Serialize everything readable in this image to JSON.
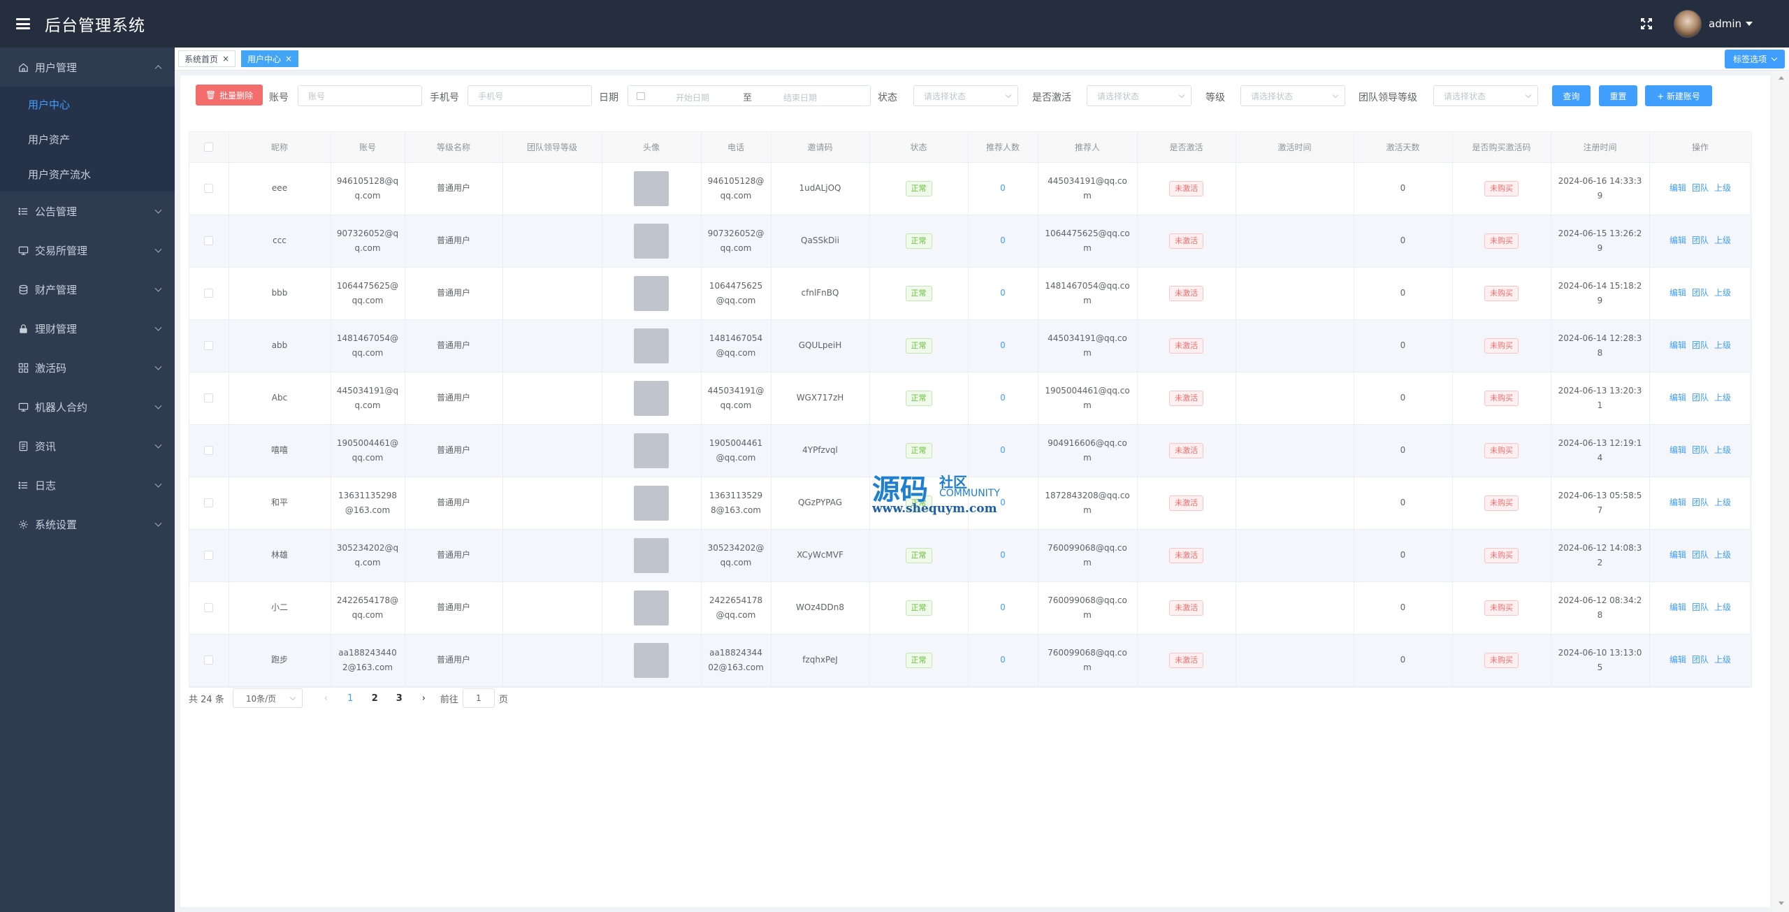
{
  "header": {
    "title": "后台管理系统",
    "user": "admin"
  },
  "sidebar": {
    "items": [
      {
        "label": "用户管理",
        "icon": "home-icon",
        "expanded": true
      },
      {
        "label": "公告管理",
        "icon": "list-icon"
      },
      {
        "label": "交易所管理",
        "icon": "monitor-icon"
      },
      {
        "label": "财产管理",
        "icon": "database-icon"
      },
      {
        "label": "理财管理",
        "icon": "lock-icon"
      },
      {
        "label": "激活码",
        "icon": "grid-icon"
      },
      {
        "label": "机器人合约",
        "icon": "monitor-icon"
      },
      {
        "label": "资讯",
        "icon": "document-icon"
      },
      {
        "label": "日志",
        "icon": "list-icon"
      },
      {
        "label": "系统设置",
        "icon": "gear-icon"
      }
    ],
    "subitems": [
      "用户中心",
      "用户资产",
      "用户资产流水"
    ]
  },
  "tabs": {
    "items": [
      "系统首页",
      "用户中心"
    ],
    "options_label": "标签选项"
  },
  "filters": {
    "batch_delete": "批量删除",
    "account_label": "账号",
    "account_placeholder": "账号",
    "phone_label": "手机号",
    "phone_placeholder": "手机号",
    "date_label": "日期",
    "date_start_placeholder": "开始日期",
    "date_sep": "至",
    "date_end_placeholder": "结束日期",
    "status_label": "状态",
    "status_placeholder": "请选择状态",
    "activated_label": "是否激活",
    "activated_placeholder": "请选择状态",
    "level_label": "等级",
    "level_placeholder": "请选择状态",
    "team_level_label": "团队领导等级",
    "team_level_placeholder": "请选择状态",
    "query": "查询",
    "reset": "重置",
    "new_account": "+ 新建账号"
  },
  "table": {
    "columns": [
      "昵称",
      "账号",
      "等级名称",
      "团队领导等级",
      "头像",
      "电话",
      "邀请码",
      "状态",
      "推荐人数",
      "推荐人",
      "是否激活",
      "激活时间",
      "激活天数",
      "是否购买激活码",
      "注册时间",
      "操作"
    ],
    "actions": [
      "编辑",
      "团队",
      "上级"
    ],
    "rows": [
      {
        "nickname": "eee",
        "account": "946105128@qq.com",
        "level": "普通用户",
        "team_level": "",
        "phone": "946105128@qq.com",
        "invite": "1udALjOQ",
        "status": "正常",
        "ref_count": "0",
        "referrer": "445034191@qq.com",
        "activated": "未激活",
        "activate_time": "",
        "activate_days": "0",
        "bought": "未购买",
        "reg_time": "2024-06-16 14:33:39"
      },
      {
        "nickname": "ccc",
        "account": "907326052@qq.com",
        "level": "普通用户",
        "team_level": "",
        "phone": "907326052@qq.com",
        "invite": "QaSSkDii",
        "status": "正常",
        "ref_count": "0",
        "referrer": "1064475625@qq.com",
        "activated": "未激活",
        "activate_time": "",
        "activate_days": "0",
        "bought": "未购买",
        "reg_time": "2024-06-15 13:26:29"
      },
      {
        "nickname": "bbb",
        "account": "1064475625@qq.com",
        "level": "普通用户",
        "team_level": "",
        "phone": "1064475625@qq.com",
        "invite": "cfnlFnBQ",
        "status": "正常",
        "ref_count": "0",
        "referrer": "1481467054@qq.com",
        "activated": "未激活",
        "activate_time": "",
        "activate_days": "0",
        "bought": "未购买",
        "reg_time": "2024-06-14 15:18:29"
      },
      {
        "nickname": "abb",
        "account": "1481467054@qq.com",
        "level": "普通用户",
        "team_level": "",
        "phone": "1481467054@qq.com",
        "invite": "GQULpeiH",
        "status": "正常",
        "ref_count": "0",
        "referrer": "445034191@qq.com",
        "activated": "未激活",
        "activate_time": "",
        "activate_days": "0",
        "bought": "未购买",
        "reg_time": "2024-06-14 12:28:38"
      },
      {
        "nickname": "Abc",
        "account": "445034191@qq.com",
        "level": "普通用户",
        "team_level": "",
        "phone": "445034191@qq.com",
        "invite": "WGX717zH",
        "status": "正常",
        "ref_count": "0",
        "referrer": "1905004461@qq.com",
        "activated": "未激活",
        "activate_time": "",
        "activate_days": "0",
        "bought": "未购买",
        "reg_time": "2024-06-13 13:20:31"
      },
      {
        "nickname": "嘻嘻",
        "account": "1905004461@qq.com",
        "level": "普通用户",
        "team_level": "",
        "phone": "1905004461@qq.com",
        "invite": "4YPfzvql",
        "status": "正常",
        "ref_count": "0",
        "referrer": "904916606@qq.com",
        "activated": "未激活",
        "activate_time": "",
        "activate_days": "0",
        "bought": "未购买",
        "reg_time": "2024-06-13 12:19:14"
      },
      {
        "nickname": "和平",
        "account": "13631135298@163.com",
        "level": "普通用户",
        "team_level": "",
        "phone": "13631135298@163.com",
        "invite": "QGzPYPAG",
        "status": "正常",
        "ref_count": "0",
        "referrer": "1872843208@qq.com",
        "activated": "未激活",
        "activate_time": "",
        "activate_days": "0",
        "bought": "未购买",
        "reg_time": "2024-06-13 05:58:57"
      },
      {
        "nickname": "林雄",
        "account": "305234202@qq.com",
        "level": "普通用户",
        "team_level": "",
        "phone": "305234202@qq.com",
        "invite": "XCyWcMVF",
        "status": "正常",
        "ref_count": "0",
        "referrer": "760099068@qq.com",
        "activated": "未激活",
        "activate_time": "",
        "activate_days": "0",
        "bought": "未购买",
        "reg_time": "2024-06-12 14:08:32"
      },
      {
        "nickname": "小二",
        "account": "2422654178@qq.com",
        "level": "普通用户",
        "team_level": "",
        "phone": "2422654178@qq.com",
        "invite": "WOz4DDn8",
        "status": "正常",
        "ref_count": "0",
        "referrer": "760099068@qq.com",
        "activated": "未激活",
        "activate_time": "",
        "activate_days": "0",
        "bought": "未购买",
        "reg_time": "2024-06-12 08:34:28"
      },
      {
        "nickname": "跑步",
        "account": "aa1882434402@163.com",
        "level": "普通用户",
        "team_level": "",
        "phone": "aa1882434402@163.com",
        "invite": "fzqhxPeJ",
        "status": "正常",
        "ref_count": "0",
        "referrer": "760099068@qq.com",
        "activated": "未激活",
        "activate_time": "",
        "activate_days": "0",
        "bought": "未购买",
        "reg_time": "2024-06-10 13:13:05"
      }
    ]
  },
  "pagination": {
    "total": "共 24 条",
    "page_size": "10条/页",
    "pages": [
      "1",
      "2",
      "3"
    ],
    "current": "1",
    "goto_label": "前往",
    "goto_value": "1",
    "page_suffix": "页"
  },
  "watermark": {
    "big": "源码",
    "small": "社区",
    "community": "COMMUNITY",
    "url": "www.shequym.com"
  },
  "colors": {
    "header_bg": "#252e3f",
    "sidebar_bg": "#2e3b50",
    "accent": "#409eff",
    "danger": "#f56c6c",
    "success": "#67c23a"
  }
}
